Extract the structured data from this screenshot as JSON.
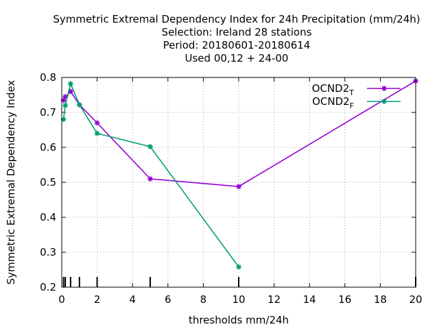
{
  "title_lines": [
    "Symmetric Extremal Dependency Index  for 24h Precipitation (mm/24h)",
    "Selection: Ireland     28 stations",
    "Period: 20180601-20180614",
    "Used  00,12  + 24-00"
  ],
  "chart_data": {
    "type": "line",
    "xlabel": "thresholds mm/24h",
    "ylabel": "Symmetric Extremal Dependency Index",
    "xlim": [
      0,
      20
    ],
    "ylim": [
      0.2,
      0.8
    ],
    "xticks": [
      0,
      2,
      4,
      6,
      8,
      10,
      12,
      14,
      16,
      18,
      20
    ],
    "xtick_labels": [
      "0",
      "2",
      "4",
      "6",
      "8",
      "10",
      "12",
      "14",
      "16",
      "18",
      "20"
    ],
    "yticks": [
      0.2,
      0.3,
      0.4,
      0.5,
      0.6,
      0.7,
      0.8
    ],
    "ytick_labels": [
      "0.2",
      "0.3",
      "0.4",
      "0.5",
      "0.6",
      "0.7",
      "0.8"
    ],
    "grid": true,
    "legend_position": "top-right",
    "threshold_marks": [
      0.1,
      0.2,
      0.5,
      1,
      2,
      5,
      10,
      20
    ],
    "series": [
      {
        "name": "OCND2",
        "name_subscript": "T",
        "color": "#9400d3",
        "x": [
          0.1,
          0.2,
          0.5,
          1,
          2,
          5,
          10,
          20
        ],
        "y": [
          0.735,
          0.745,
          0.76,
          0.722,
          0.67,
          0.51,
          0.488,
          0.79
        ]
      },
      {
        "name": "OCND2",
        "name_subscript": "F",
        "color": "#009e73",
        "x": [
          0.1,
          0.2,
          0.5,
          1,
          2,
          5,
          10
        ],
        "y": [
          0.68,
          0.72,
          0.782,
          0.722,
          0.64,
          0.602,
          0.258
        ]
      }
    ]
  }
}
